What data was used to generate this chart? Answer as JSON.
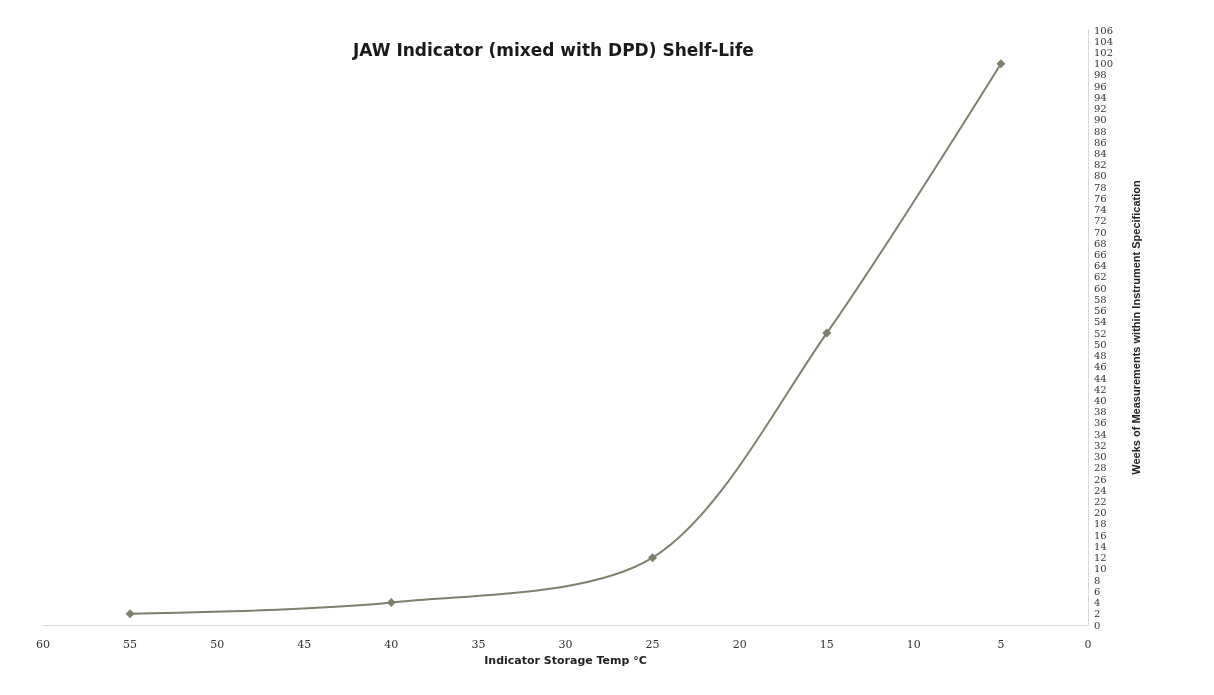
{
  "chart_data": {
    "type": "line",
    "title": "JAW Indicator (mixed with DPD) Shelf-Life",
    "xlabel": "Indicator Storage Temp °C",
    "ylabel": "Weeks of Measurements within Instrument Specification",
    "x": [
      55,
      40,
      25,
      15,
      5
    ],
    "series": [
      {
        "color": "#7f7f6e",
        "values": [
          2,
          4,
          12,
          52,
          100
        ]
      }
    ],
    "xlim": [
      60,
      0
    ],
    "xticks": [
      0,
      5,
      10,
      15,
      20,
      25,
      30,
      35,
      40,
      45,
      50,
      55,
      60
    ],
    "ylim": [
      0,
      106
    ],
    "yticks": [
      0,
      2,
      4,
      6,
      8,
      10,
      12,
      14,
      16,
      18,
      20,
      22,
      24,
      26,
      28,
      30,
      32,
      34,
      36,
      38,
      40,
      42,
      44,
      46,
      48,
      50,
      52,
      54,
      56,
      58,
      60,
      62,
      64,
      66,
      68,
      70,
      72,
      74,
      76,
      78,
      80,
      82,
      84,
      86,
      88,
      90,
      92,
      94,
      96,
      98,
      100,
      102,
      104,
      106
    ],
    "marker": "diamond",
    "grid": false
  }
}
